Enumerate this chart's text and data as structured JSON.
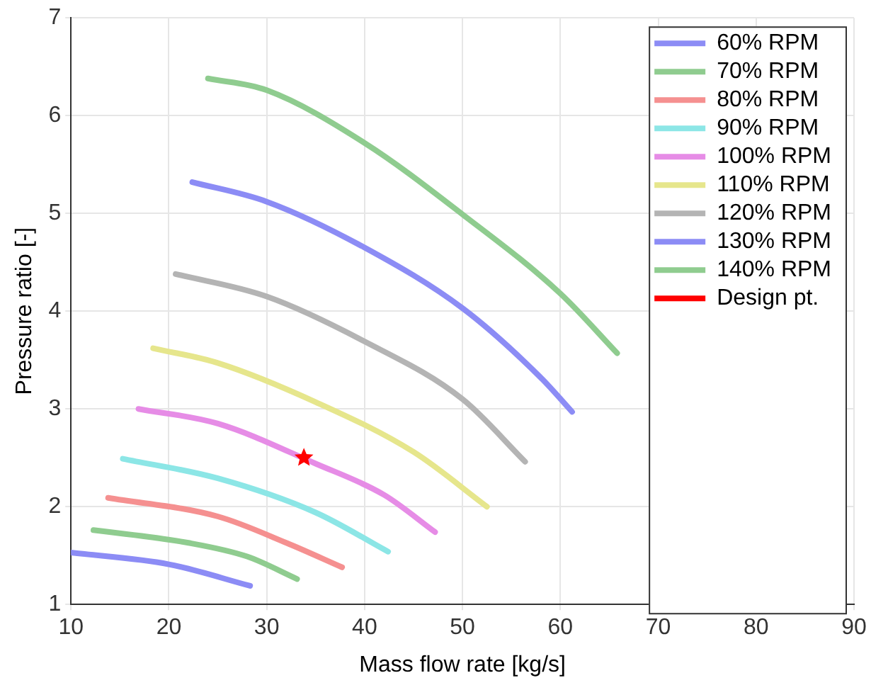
{
  "chart_data": {
    "type": "line",
    "xlabel": "Mass flow rate [kg/s]",
    "ylabel": "Pressure ratio [-]",
    "xlim": [
      10,
      90
    ],
    "xticks": [
      10,
      20,
      30,
      40,
      50,
      60,
      70,
      80,
      90
    ],
    "ylim": [
      1,
      7
    ],
    "yticks": [
      1,
      2,
      3,
      4,
      5,
      6,
      7
    ],
    "grid": true,
    "legend": "top right",
    "marker": "none",
    "line_style": "solid",
    "series": [
      {
        "name": "60% RPM",
        "color": "#8c8cf5",
        "x": [
          10,
          20,
          28.3
        ],
        "values": [
          1.53,
          1.41,
          1.19
        ]
      },
      {
        "name": "70% RPM",
        "color": "#8fcc8f",
        "x": [
          12.3,
          22,
          28,
          33.1
        ],
        "values": [
          1.76,
          1.63,
          1.49,
          1.26
        ]
      },
      {
        "name": "80% RPM",
        "color": "#f59090",
        "x": [
          13.8,
          25,
          32,
          37.7
        ],
        "values": [
          2.09,
          1.9,
          1.63,
          1.38
        ]
      },
      {
        "name": "90% RPM",
        "color": "#8ce6e6",
        "x": [
          15.3,
          25,
          35,
          42.4
        ],
        "values": [
          2.49,
          2.29,
          1.94,
          1.54
        ]
      },
      {
        "name": "100% RPM",
        "color": "#e68ce6",
        "x": [
          16.9,
          25,
          35,
          42,
          47.2
        ],
        "values": [
          3.0,
          2.85,
          2.44,
          2.12,
          1.74
        ]
      },
      {
        "name": "110% RPM",
        "color": "#e6e68c",
        "x": [
          18.4,
          25,
          35,
          45,
          52.5
        ],
        "values": [
          3.62,
          3.47,
          3.07,
          2.56,
          2.0
        ]
      },
      {
        "name": "120% RPM",
        "color": "#b4b4b4",
        "x": [
          20.7,
          30,
          40,
          50,
          56.4
        ],
        "values": [
          4.38,
          4.15,
          3.69,
          3.1,
          2.46
        ]
      },
      {
        "name": "130% RPM",
        "color": "#8c8cf5",
        "x": [
          22.4,
          30,
          40,
          50,
          58,
          61.2
        ],
        "values": [
          5.32,
          5.12,
          4.65,
          4.03,
          3.32,
          2.97
        ]
      },
      {
        "name": "140% RPM",
        "color": "#8fcc8f",
        "x": [
          24,
          30,
          40,
          50,
          60,
          65.8
        ],
        "values": [
          6.38,
          6.26,
          5.72,
          4.99,
          4.18,
          3.57
        ]
      },
      {
        "name": "Design pt.",
        "type": "scatter",
        "marker": "star",
        "color": "#ff0000",
        "x": [
          33.8
        ],
        "values": [
          2.5
        ]
      }
    ]
  }
}
